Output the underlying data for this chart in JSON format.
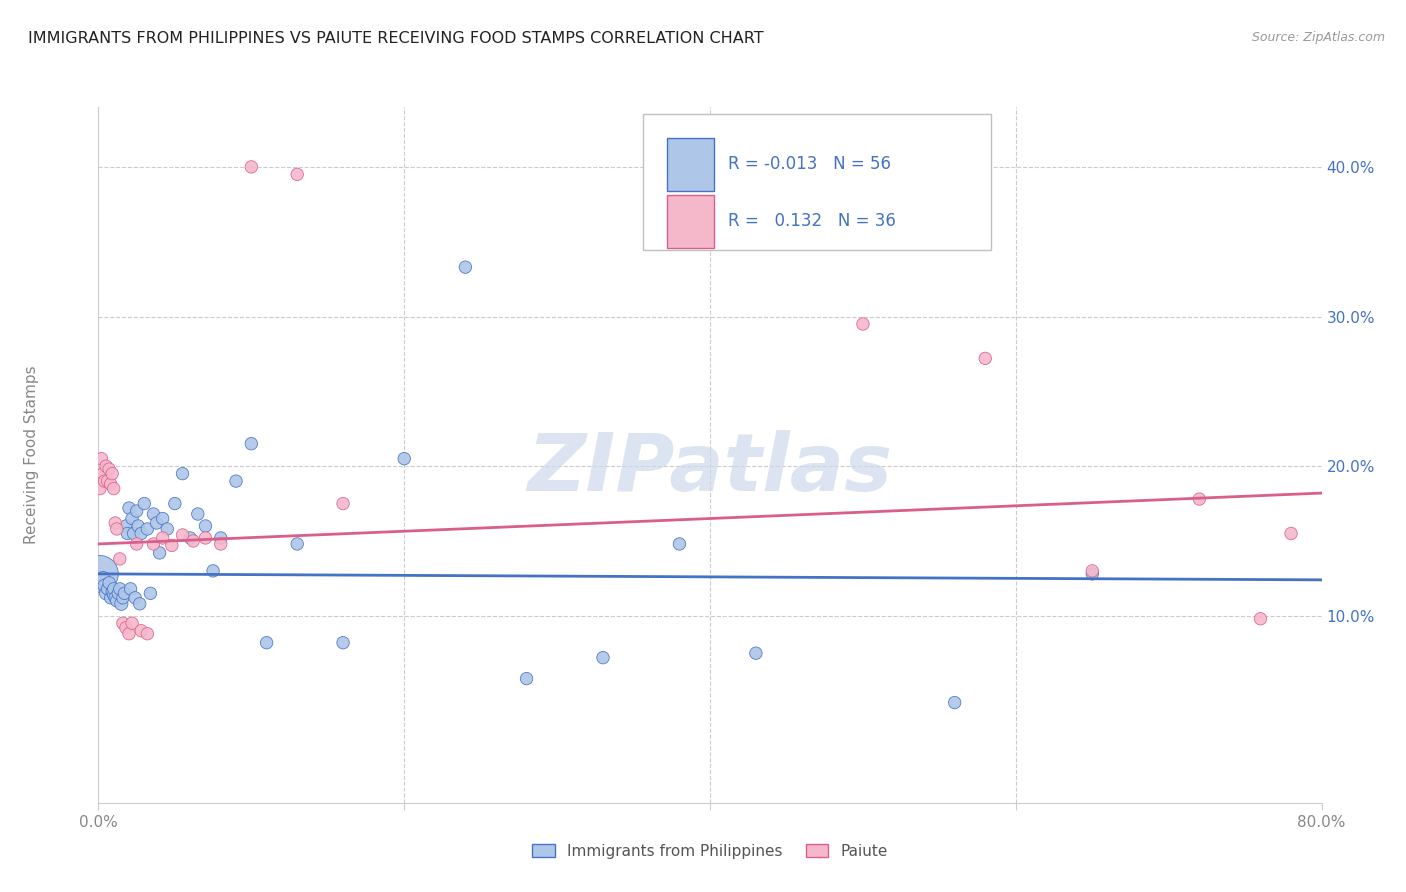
{
  "title": "IMMIGRANTS FROM PHILIPPINES VS PAIUTE RECEIVING FOOD STAMPS CORRELATION CHART",
  "source": "Source: ZipAtlas.com",
  "ylabel": "Receiving Food Stamps",
  "xlim": [
    0.0,
    0.8
  ],
  "ylim": [
    -0.025,
    0.44
  ],
  "xtick_positions": [
    0.0,
    0.2,
    0.4,
    0.6,
    0.8
  ],
  "xticklabels": [
    "0.0%",
    "",
    "",
    "",
    "80.0%"
  ],
  "ytick_positions": [
    0.1,
    0.2,
    0.3,
    0.4
  ],
  "ytick_labels": [
    "10.0%",
    "20.0%",
    "30.0%",
    "40.0%"
  ],
  "legend_R1": "-0.013",
  "legend_N1": "56",
  "legend_R2": "0.132",
  "legend_N2": "36",
  "color_blue": "#aec6e8",
  "color_pink": "#f5b8cb",
  "color_blue_line": "#4472c4",
  "color_pink_line": "#d95f8a",
  "color_text_blue": "#4472c4",
  "color_axis": "#888888",
  "color_grid": "#cccccc",
  "watermark_color": "#ccd9ea",
  "philippines_x": [
    0.001,
    0.003,
    0.004,
    0.005,
    0.006,
    0.007,
    0.008,
    0.009,
    0.01,
    0.01,
    0.011,
    0.012,
    0.013,
    0.014,
    0.015,
    0.016,
    0.017,
    0.018,
    0.019,
    0.02,
    0.021,
    0.022,
    0.023,
    0.024,
    0.025,
    0.026,
    0.027,
    0.028,
    0.03,
    0.032,
    0.034,
    0.036,
    0.038,
    0.04,
    0.042,
    0.045,
    0.05,
    0.055,
    0.06,
    0.065,
    0.07,
    0.075,
    0.08,
    0.09,
    0.1,
    0.11,
    0.13,
    0.16,
    0.2,
    0.24,
    0.28,
    0.33,
    0.38,
    0.43,
    0.56,
    0.65
  ],
  "philippines_y": [
    0.128,
    0.125,
    0.12,
    0.115,
    0.118,
    0.122,
    0.112,
    0.116,
    0.114,
    0.118,
    0.112,
    0.11,
    0.115,
    0.118,
    0.108,
    0.112,
    0.115,
    0.16,
    0.155,
    0.172,
    0.118,
    0.165,
    0.155,
    0.112,
    0.17,
    0.16,
    0.108,
    0.155,
    0.175,
    0.158,
    0.115,
    0.168,
    0.162,
    0.142,
    0.165,
    0.158,
    0.175,
    0.195,
    0.152,
    0.168,
    0.16,
    0.13,
    0.152,
    0.19,
    0.215,
    0.082,
    0.148,
    0.082,
    0.205,
    0.333,
    0.058,
    0.072,
    0.148,
    0.075,
    0.042,
    0.128
  ],
  "philippines_size": [
    700,
    100,
    90,
    90,
    80,
    80,
    80,
    80,
    80,
    80,
    80,
    80,
    80,
    80,
    90,
    80,
    80,
    80,
    80,
    80,
    80,
    80,
    80,
    80,
    80,
    80,
    80,
    80,
    80,
    80,
    80,
    80,
    80,
    80,
    80,
    80,
    80,
    80,
    80,
    80,
    80,
    80,
    80,
    80,
    80,
    80,
    80,
    80,
    80,
    80,
    80,
    80,
    80,
    80,
    80,
    80
  ],
  "paiute_x": [
    0.001,
    0.002,
    0.003,
    0.004,
    0.005,
    0.006,
    0.007,
    0.008,
    0.009,
    0.01,
    0.011,
    0.012,
    0.014,
    0.016,
    0.018,
    0.02,
    0.022,
    0.025,
    0.028,
    0.032,
    0.036,
    0.042,
    0.048,
    0.055,
    0.062,
    0.07,
    0.08,
    0.1,
    0.13,
    0.16,
    0.5,
    0.58,
    0.65,
    0.72,
    0.76,
    0.78
  ],
  "paiute_y": [
    0.185,
    0.205,
    0.195,
    0.19,
    0.2,
    0.19,
    0.198,
    0.188,
    0.195,
    0.185,
    0.162,
    0.158,
    0.138,
    0.095,
    0.092,
    0.088,
    0.095,
    0.148,
    0.09,
    0.088,
    0.148,
    0.152,
    0.147,
    0.154,
    0.15,
    0.152,
    0.148,
    0.4,
    0.395,
    0.175,
    0.295,
    0.272,
    0.13,
    0.178,
    0.098,
    0.155
  ],
  "paiute_size": [
    80,
    80,
    80,
    80,
    80,
    80,
    80,
    80,
    80,
    80,
    80,
    80,
    80,
    80,
    80,
    80,
    80,
    80,
    80,
    80,
    80,
    80,
    80,
    80,
    80,
    80,
    80,
    80,
    80,
    80,
    80,
    80,
    80,
    80,
    80,
    80
  ],
  "blue_line_y0": 0.128,
  "blue_line_y1": 0.124,
  "pink_line_y0": 0.148,
  "pink_line_y1": 0.182
}
